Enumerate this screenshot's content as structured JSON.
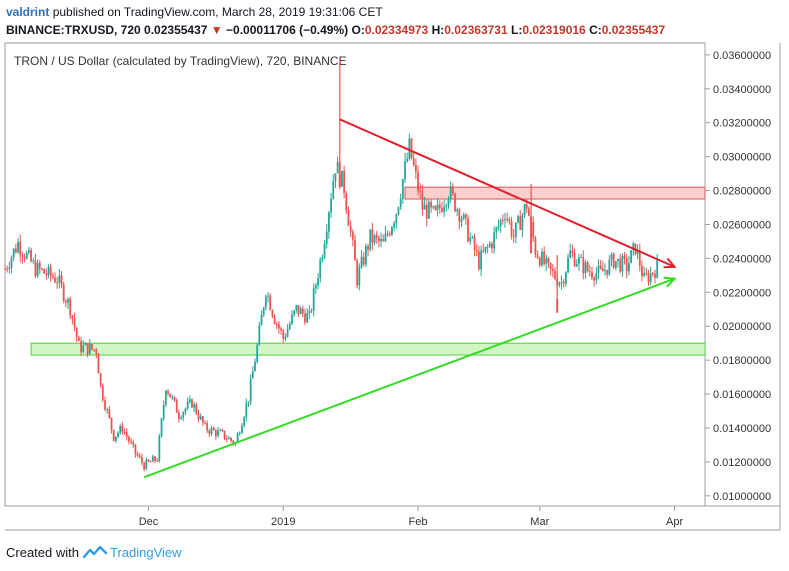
{
  "header": {
    "username": "valdrint",
    "published_text": "published on TradingView.com, March 28, 2019 19:31:06 CET",
    "symbol": "BINANCE:TRXUSD, 720",
    "last": "0.02355437",
    "change": "−0.00011706 (−0.49%)",
    "o_label": "O:",
    "o_value": "0.02334973",
    "h_label": "H:",
    "h_value": "0.02363731",
    "l_label": "L:",
    "l_value": "0.02319016",
    "c_label": "C:",
    "c_value": "0.02355437"
  },
  "footer": {
    "created_text": "Created with",
    "brand": "TradingView"
  },
  "colors": {
    "up": "#26a69a",
    "down": "#ef5350",
    "resistance": "#e0202a",
    "support": "#33dd22",
    "axis_text": "#333333"
  },
  "chart_data": {
    "type": "candlestick",
    "title": "TRON / US Dollar (calculated by TradingView), 720, BINANCE",
    "x_tick_labels": [
      "Dec",
      "2019",
      "Feb",
      "Mar",
      "Apr"
    ],
    "x_ticks": [
      "2018-12-01",
      "2019-01-01",
      "2019-02-01",
      "2019-03-01",
      "2019-04-01"
    ],
    "xlim": [
      "2018-10-29",
      "2019-04-08"
    ],
    "ylim": [
      0.0094,
      0.0367
    ],
    "y_ticks": [
      0.01,
      0.012,
      0.014,
      0.016,
      0.018,
      0.02,
      0.022,
      0.024,
      0.026,
      0.028,
      0.03,
      0.032,
      0.034,
      0.036
    ],
    "y_tick_labels": [
      "0.01000000",
      "0.01200000",
      "0.01400000",
      "0.01600000",
      "0.01800000",
      "0.02000000",
      "0.02200000",
      "0.02400000",
      "0.02600000",
      "0.02800000",
      "0.03000000",
      "0.03200000",
      "0.03400000",
      "0.03600000"
    ],
    "price_path": [
      [
        "2018-10-29",
        0.0234
      ],
      [
        "2018-11-01",
        0.0249
      ],
      [
        "2018-11-05",
        0.0234
      ],
      [
        "2018-11-10",
        0.0228
      ],
      [
        "2018-11-13",
        0.0211
      ],
      [
        "2018-11-15",
        0.0188
      ],
      [
        "2018-11-19",
        0.0186
      ],
      [
        "2018-11-20",
        0.0164
      ],
      [
        "2018-11-23",
        0.0135
      ],
      [
        "2018-11-25",
        0.014
      ],
      [
        "2018-11-28",
        0.0125
      ],
      [
        "2018-11-30",
        0.0118
      ],
      [
        "2018-12-03",
        0.0122
      ],
      [
        "2018-12-05",
        0.0165
      ],
      [
        "2018-12-08",
        0.0148
      ],
      [
        "2018-12-11",
        0.0155
      ],
      [
        "2018-12-14",
        0.014
      ],
      [
        "2018-12-18",
        0.0136
      ],
      [
        "2018-12-21",
        0.0131
      ],
      [
        "2018-12-24",
        0.0158
      ],
      [
        "2018-12-26",
        0.0188
      ],
      [
        "2018-12-28",
        0.0222
      ],
      [
        "2018-12-30",
        0.0205
      ],
      [
        "2019-01-01",
        0.0193
      ],
      [
        "2019-01-04",
        0.021
      ],
      [
        "2019-01-07",
        0.0205
      ],
      [
        "2019-01-10",
        0.0245
      ],
      [
        "2019-01-13",
        0.0295
      ],
      [
        "2019-01-15",
        0.0282
      ],
      [
        "2019-01-18",
        0.0228
      ],
      [
        "2019-01-21",
        0.0252
      ],
      [
        "2019-01-24",
        0.0248
      ],
      [
        "2019-01-27",
        0.0268
      ],
      [
        "2019-01-30",
        0.0305
      ],
      [
        "2019-02-02",
        0.027
      ],
      [
        "2019-02-05",
        0.0265
      ],
      [
        "2019-02-08",
        0.028
      ],
      [
        "2019-02-11",
        0.0265
      ],
      [
        "2019-02-15",
        0.0238
      ],
      [
        "2019-02-18",
        0.025
      ],
      [
        "2019-02-21",
        0.0268
      ],
      [
        "2019-02-23",
        0.0253
      ],
      [
        "2019-02-26",
        0.0272
      ],
      [
        "2019-02-28",
        0.0245
      ],
      [
        "2019-03-03",
        0.0233
      ],
      [
        "2019-03-06",
        0.0226
      ],
      [
        "2019-03-08",
        0.0243
      ],
      [
        "2019-03-12",
        0.0233
      ],
      [
        "2019-03-15",
        0.0231
      ],
      [
        "2019-03-18",
        0.0239
      ],
      [
        "2019-03-21",
        0.0235
      ],
      [
        "2019-03-23",
        0.0247
      ],
      [
        "2019-03-25",
        0.0227
      ],
      [
        "2019-03-28",
        0.0235
      ]
    ],
    "spikes": [
      [
        "2019-01-14",
        0.0282,
        0.0358,
        0.029
      ],
      [
        "2019-02-27",
        0.0243,
        0.0284,
        0.0264
      ],
      [
        "2019-03-05",
        0.0208,
        0.0242,
        0.0216
      ]
    ],
    "resistance_line": {
      "from": [
        "2019-01-14",
        0.0322
      ],
      "to": [
        "2019-04-01",
        0.0235
      ]
    },
    "support_line": {
      "from": [
        "2018-11-30",
        0.0111
      ],
      "to": [
        "2019-04-01",
        0.0228
      ]
    },
    "resistance_zone": {
      "from": "2019-01-29",
      "to": "2019-04-08",
      "low": 0.0275,
      "high": 0.0282
    },
    "support_zone": {
      "from": "2018-11-04",
      "to": "2019-04-08",
      "low": 0.0183,
      "high": 0.019
    }
  }
}
